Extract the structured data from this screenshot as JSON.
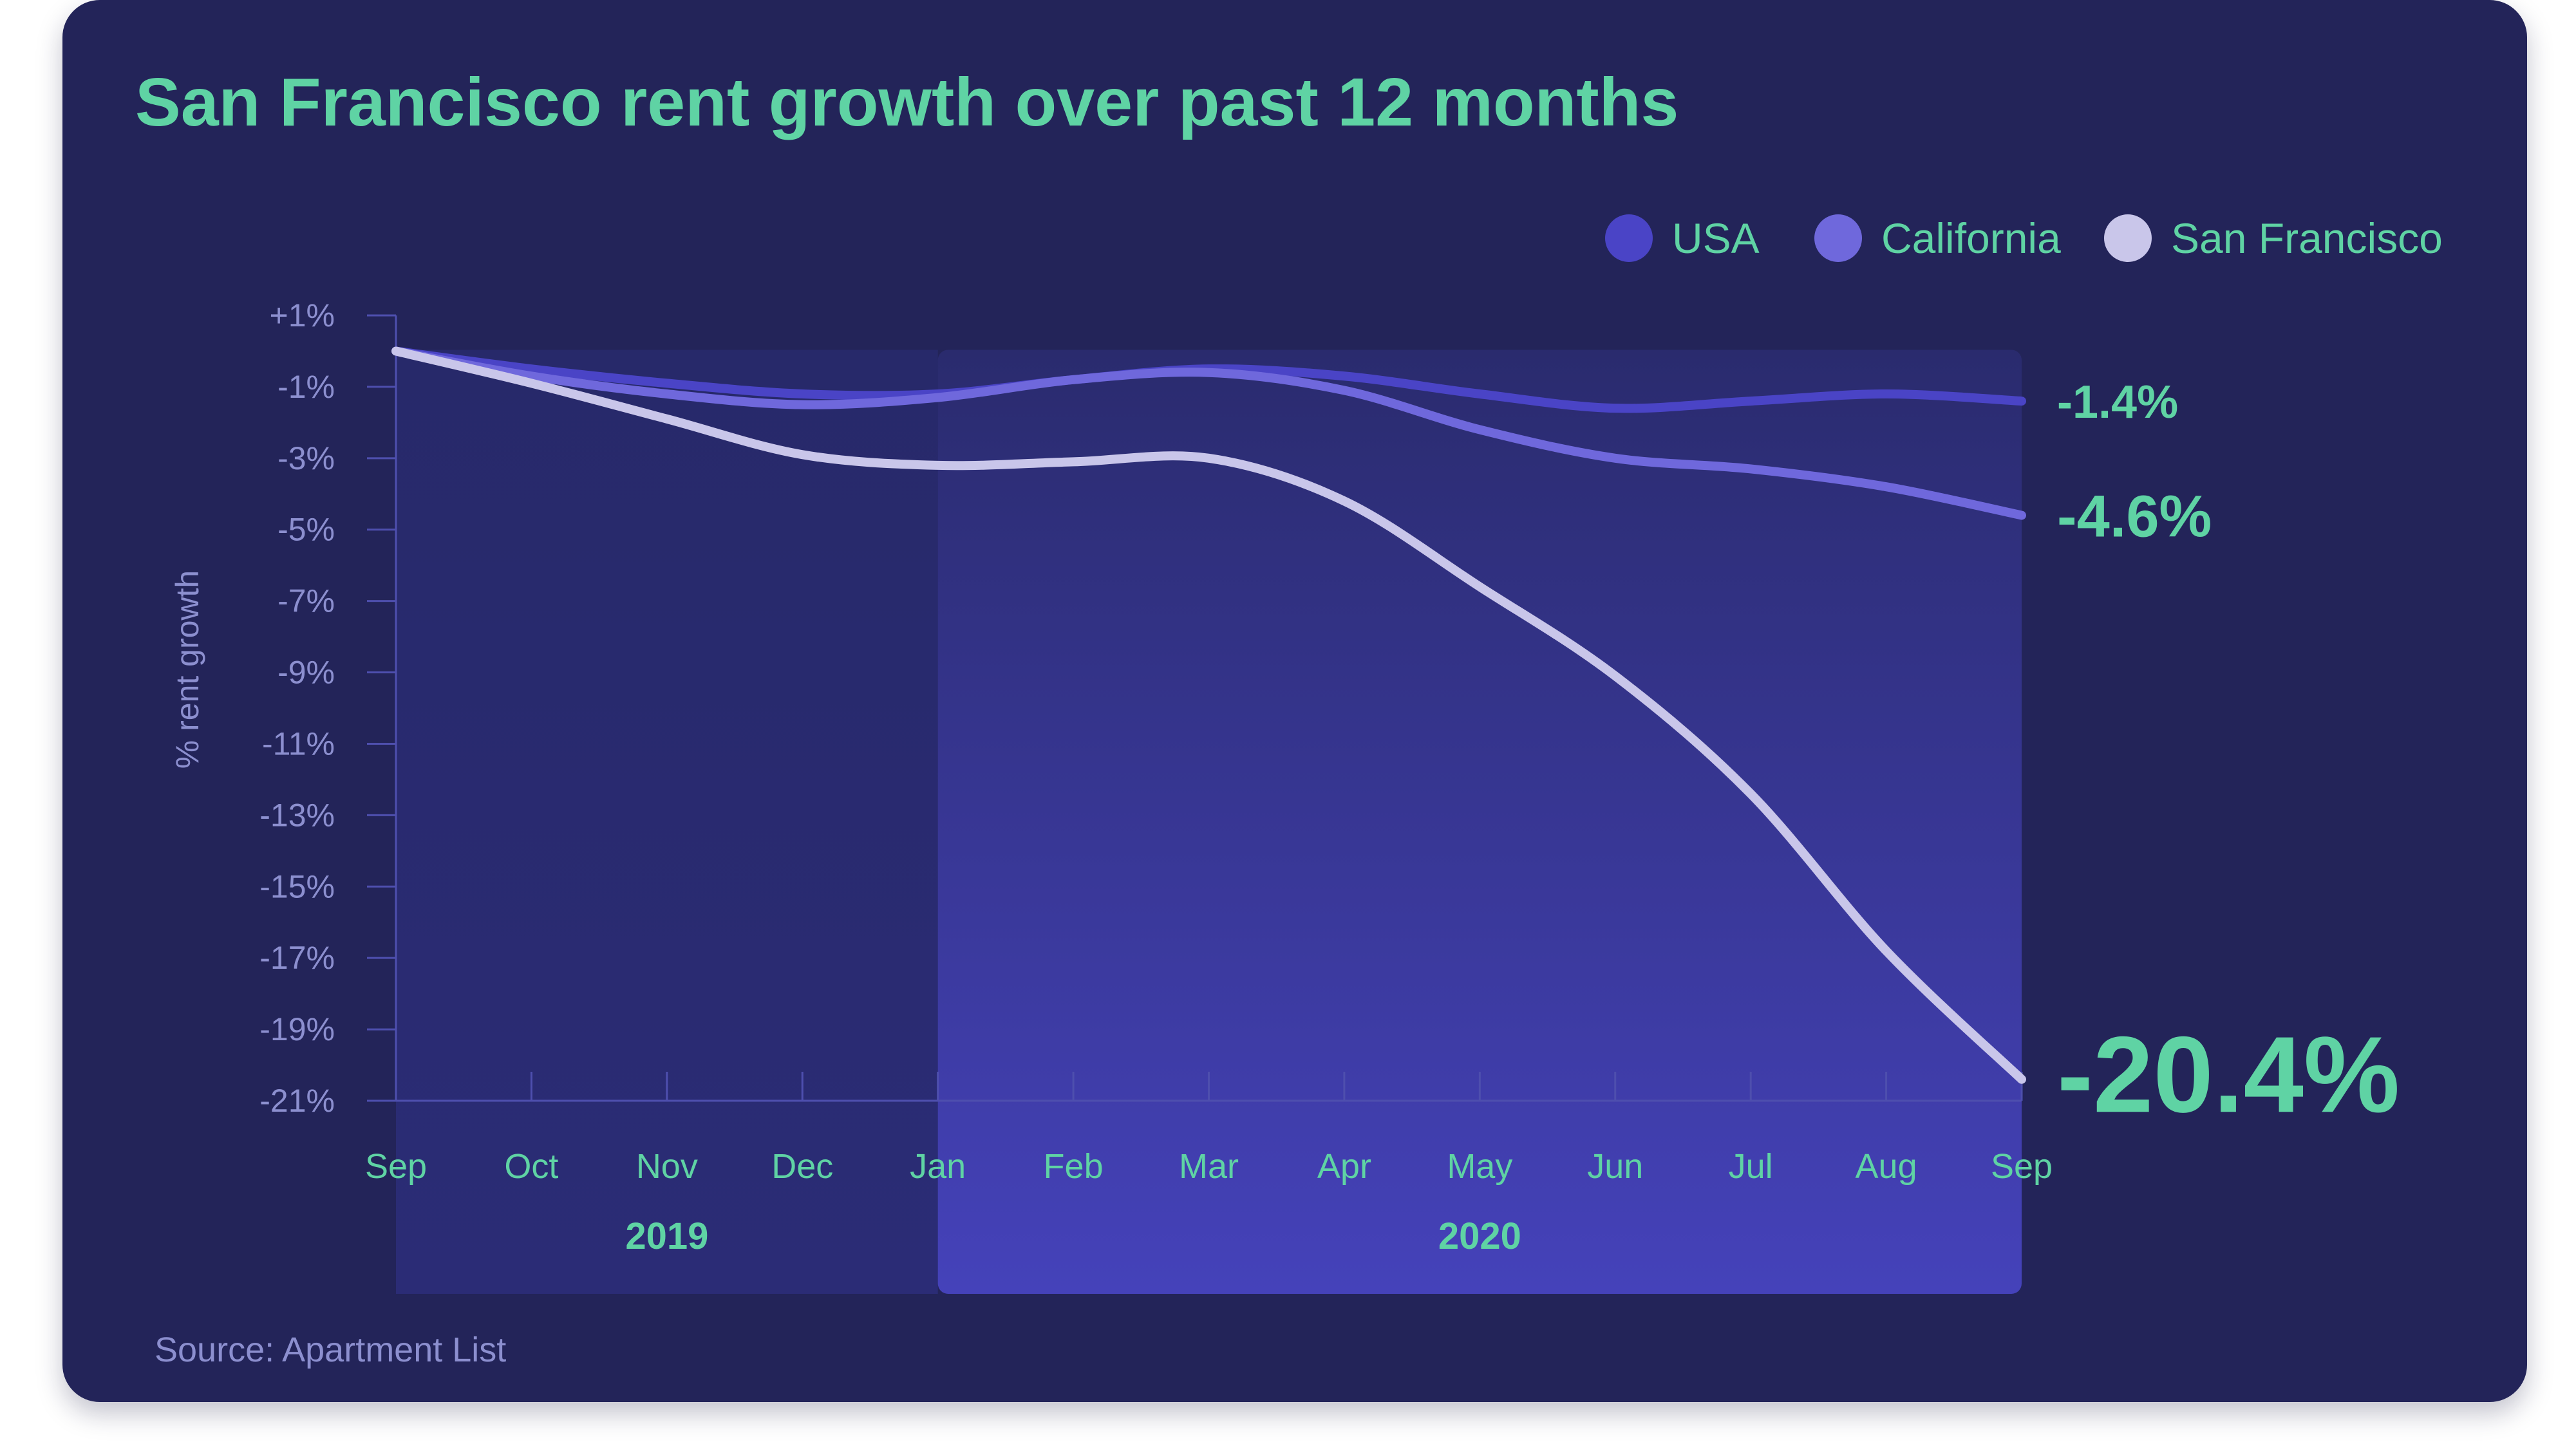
{
  "colors": {
    "card": "#232459",
    "accent": "#5fd3a4",
    "muted": "#8c8fcf",
    "usa": "#4a44c6",
    "california": "#6f68dc",
    "san_francisco": "#c9c6ea"
  },
  "footer": {
    "source": "Source: Apartment List"
  },
  "chart_data": {
    "type": "line",
    "title": "San Francisco rent growth over past 12 months",
    "ylabel": "% rent growth",
    "xlabel": "",
    "ylim": [
      -21,
      1
    ],
    "y_ticks": [
      "+1%",
      "-1%",
      "-3%",
      "-5%",
      "-7%",
      "-9%",
      "-11%",
      "-13%",
      "-15%",
      "-17%",
      "-19%",
      "-21%"
    ],
    "y_tick_values": [
      1,
      -1,
      -3,
      -5,
      -7,
      -9,
      -11,
      -13,
      -15,
      -17,
      -19,
      -21
    ],
    "categories": [
      "Sep",
      "Oct",
      "Nov",
      "Dec",
      "Jan",
      "Feb",
      "Mar",
      "Apr",
      "May",
      "Jun",
      "Jul",
      "Aug",
      "Sep"
    ],
    "year_groups": [
      {
        "label": "2019",
        "start": 0,
        "end": 4
      },
      {
        "label": "2020",
        "start": 4,
        "end": 12
      }
    ],
    "legend": [
      "USA",
      "California",
      "San Francisco"
    ],
    "legend_position": "top-right",
    "series": [
      {
        "name": "USA",
        "color": "#4a44c6",
        "end_label": "-1.4%",
        "values": [
          0,
          -0.5,
          -0.9,
          -1.2,
          -1.2,
          -0.8,
          -0.5,
          -0.7,
          -1.2,
          -1.6,
          -1.4,
          -1.2,
          -1.4
        ]
      },
      {
        "name": "California",
        "color": "#6f68dc",
        "end_label": "-4.6%",
        "values": [
          0,
          -0.7,
          -1.2,
          -1.5,
          -1.3,
          -0.8,
          -0.6,
          -1.1,
          -2.2,
          -3.0,
          -3.3,
          -3.8,
          -4.6
        ]
      },
      {
        "name": "San Francisco",
        "color": "#c9c6ea",
        "end_label": "-20.4%",
        "values": [
          0,
          -0.9,
          -1.9,
          -2.9,
          -3.2,
          -3.1,
          -3.0,
          -4.2,
          -6.6,
          -9.1,
          -12.4,
          -16.8,
          -20.4
        ]
      }
    ]
  }
}
